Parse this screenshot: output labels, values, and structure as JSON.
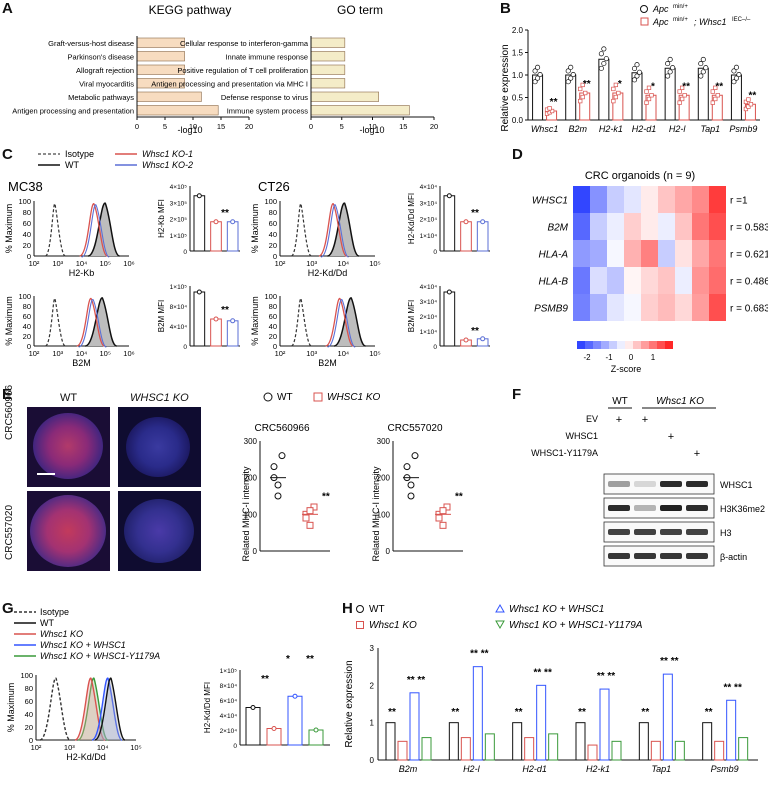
{
  "panel_labels": {
    "A": "A",
    "B": "B",
    "C": "C",
    "D": "D",
    "E": "E",
    "F": "F",
    "G": "G",
    "H": "H"
  },
  "colors": {
    "bar": "#f7dcc0",
    "bar_go": "#f4ecc8",
    "wt": "#111111",
    "ko": "#d9534f",
    "ko2": "#5b6fd6",
    "rescue": "#3355ff",
    "mut": "#3a9a3a"
  },
  "panelA": {
    "kegg_title": "KEGG pathway",
    "go_title": "GO term",
    "xlabel": "-log10"
  },
  "panelB": {
    "legend": [
      "Apc",
      "Apc",
      "; Whsc1",
      "min/+",
      "min/+",
      "IEC–/–"
    ],
    "ylabel": "Relative expression",
    "genes": [
      "Whsc1",
      "B2m",
      "H2-k1",
      "H2-d1",
      "H2-l",
      "Tap1",
      "Psmb9"
    ]
  },
  "panelC": {
    "legend": [
      "Isotype",
      "WT",
      "Whsc1 KO-1",
      "Whsc1 KO-2"
    ],
    "mc38": "MC38",
    "ct26": "CT26",
    "ylabel": "% Maximum",
    "x_top_mc38": "H2-Kb",
    "x_top_ct26": "H2-Kd/Dd",
    "x_bottom": "B2M",
    "bar_y": [
      "H2-Kb MFI",
      "H2-Kd/Dd MFI",
      "B2M  MFI",
      "B2M  MFI"
    ]
  },
  "panelD": {
    "title": "CRC organoids (n = 9)",
    "rows": [
      "WHSC1",
      "B2M",
      "HLA-A",
      "HLA-B",
      "PSMB9"
    ],
    "r": [
      "r =1",
      "r = 0.583",
      "r = 0.621",
      "r = 0.486",
      "r = 0.683"
    ],
    "scale_label": "Z-score",
    "ticks": [
      "-2",
      "-1",
      "0",
      "1"
    ]
  },
  "panelE": {
    "col_wt": "WT",
    "col_ko": "WHSC1 KO",
    "row1": "CRC560966",
    "row2": "CRC557020",
    "legend_wt": "WT",
    "legend_ko": "WHSC1 KO",
    "plot1": "CRC560966",
    "plot2": "CRC557020",
    "ylabel": "Related MHC-I intensity"
  },
  "panelF": {
    "wt": "WT",
    "ko": "Whsc1 KO",
    "rows": [
      "EV",
      "WHSC1",
      "WHSC1-Y1179A"
    ],
    "blots": [
      "WHSC1",
      "H3K36me2",
      "H3",
      "β-actin"
    ]
  },
  "panelG": {
    "legend": [
      "Isotype",
      "WT",
      "Whsc1 KO",
      "Whsc1 KO + WHSC1",
      "Whsc1 KO + WHSC1-Y1179A"
    ],
    "ylabel": "% Maximum",
    "xlabel": "H2-Kd/Dd",
    "bar_y": "H2-Kd/Dd MFI"
  },
  "panelH": {
    "legend": [
      "WT",
      "Whsc1 KO",
      "Whsc1 KO + WHSC1",
      "Whsc1 KO + WHSC1-Y1179A"
    ],
    "ylabel": "Relative expression",
    "genes": [
      "B2m",
      "H2-l",
      "H2-d1",
      "H2-k1",
      "Tap1",
      "Psmb9"
    ]
  },
  "chart_data": [
    {
      "type": "bar",
      "id": "kegg",
      "categories": [
        "Graft-versus-host disease",
        "Parkinson's disease",
        "Allograft rejection",
        "Viral myocarditis",
        "Metabolic pathways",
        "Antigen processing and presentation"
      ],
      "values": [
        8.5,
        8.5,
        8.5,
        8.5,
        11.5,
        14.5
      ],
      "xlabel": "-log10",
      "xlim": [
        0,
        20
      ],
      "ticks": [
        0,
        5,
        10,
        15,
        20
      ]
    },
    {
      "type": "bar",
      "id": "go",
      "categories": [
        "Cellular response to interferon-gamma",
        "Innate immune response",
        "Positive regulation of T cell proliferation",
        "Antigen processing and presentation via MHC I",
        "Defense response to virus",
        "Immune system process"
      ],
      "values": [
        5.5,
        5.5,
        5.5,
        5.5,
        11,
        16
      ],
      "xlabel": "-log10",
      "xlim": [
        0,
        20
      ],
      "ticks": [
        0,
        5,
        10,
        15,
        20
      ]
    },
    {
      "type": "bar",
      "id": "genes_B",
      "categories": [
        "Whsc1",
        "B2m",
        "H2-k1",
        "H2-d1",
        "H2-l",
        "Tap1",
        "Psmb9"
      ],
      "series": [
        {
          "name": "Apc min/+",
          "values": [
            1.0,
            1.0,
            1.35,
            1.05,
            1.15,
            1.15,
            1.0
          ]
        },
        {
          "name": "Apc min/+; Whsc1 IEC–/–",
          "values": [
            0.2,
            0.6,
            0.6,
            0.55,
            0.55,
            0.55,
            0.35
          ]
        }
      ],
      "ylim": [
        0,
        2.0
      ],
      "ticks": [
        0,
        0.5,
        1.0,
        1.5,
        2.0
      ],
      "significance": [
        "**",
        "**",
        "*",
        "*",
        "**",
        "**",
        "**"
      ]
    }
  ]
}
